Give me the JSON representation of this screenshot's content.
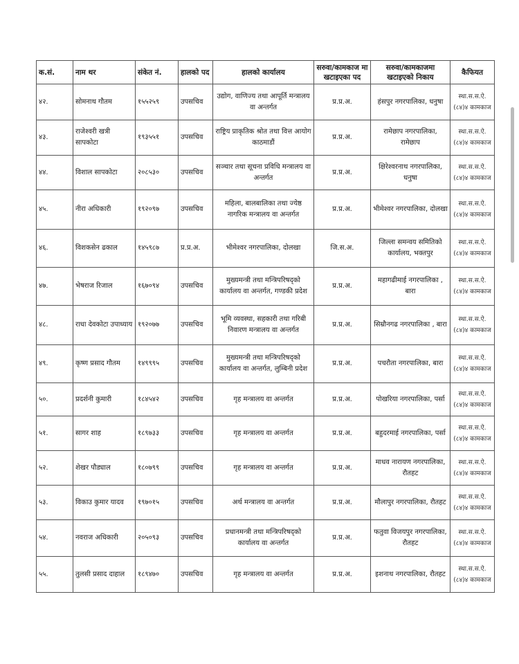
{
  "headers": [
    "क.सं.",
    "नाम थर",
    "संकेत नं.",
    "हालको पद",
    "हालको कार्यालय",
    "सरुवा/कामकाज मा खटाइएका पद",
    "सरुवा/कामकाजमा खटाइएको निकाय",
    "कैफियत"
  ],
  "rows": [
    [
      "४२.",
      "सोमनाथ गौतम",
      "१५५२५९",
      "उपसचिव",
      "उद्योग, वाणिज्य तथा आपूर्ति मन्त्रालय वा अन्तर्गत",
      "प्र.प्र.अ.",
      "हंसपुर नगरपालिका, धनुषा",
      "स्था.स.स.ऐ. (८४)४ कामकाज"
    ],
    [
      "४३.",
      "राजेश्वरी खत्री सापकोटा",
      "१९३५५१",
      "उपसचिव",
      "राष्ट्रिय प्राकृतिक श्रोत तथा वित्त आयोग काठमाडौं",
      "प्र.प्र.अ.",
      "रामेछाप नगरपालिका, रामेछाप",
      "स्था.स.स.ऐ. (८४)४ कामकाज"
    ],
    [
      "४४.",
      "विशाल सापकोटा",
      "२०८५३०",
      "उपसचिव",
      "सञ्चार तथा सूचना प्रविधि मन्त्रालय वा अन्तर्गत",
      "प्र.प्र.अ.",
      "क्षिरेश्वरनाथ नगरपालिका, धनुषा",
      "स्था.स.स.ऐ. (८४)४ कामकाज"
    ],
    [
      "४५.",
      "नीरा अधिकारी",
      "१९२०९७",
      "उपसचिव",
      "महिला, बालबालिका तथा ज्येष्ठ नागरिक मन्त्रालय वा अन्तर्गत",
      "प्र.प्र.अ.",
      "भीमेश्वर नगरपालिका, दोलखा",
      "स्था.स.स.ऐ. (८४)४ कामकाज"
    ],
    [
      "४६.",
      "विशकसेन ढकाल",
      "१४५९८७",
      "प्र.प्र.अ.",
      "भीमेश्वर नगरपालिका, दोलखा",
      "जि.स.अ.",
      "जिल्ला समन्वय समितिको कार्यालय, भक्तपुर",
      "स्था.स.स.ऐ. (८४)४ कामकाज"
    ],
    [
      "४७.",
      "भेषराज रिजाल",
      "१६७०९४",
      "उपसचिव",
      "मुख्यमन्त्री तथा मन्त्रिपरिषद्को कार्यालय वा अन्तर्गत, गण्डकी प्रदेश",
      "प्र.प्र.अ.",
      "महागढीमाई नगरपालिका , बारा",
      "स्था.स.स.ऐ. (८४)४ कामकाज"
    ],
    [
      "४८.",
      "राधा देवकोटा उपाध्याय",
      "१९२०७७",
      "उपसचिव",
      "भूमि व्यवस्था, सहकारी तथा गरिबी निवारण मन्त्रालय वा अन्तर्गत",
      "प्र.प्र.अ.",
      "सिम्रौनगढ नगरपालिका , बारा",
      "स्था.स.स.ऐ. (८४)४ कामकाज"
    ],
    [
      "४९.",
      "कृष्ण प्रसाद गौतम",
      "१४९९९५",
      "उपसचिव",
      "मुख्यमन्त्री तथा मन्त्रिपरिषद्को कार्यालय वा अन्तर्गत, लुम्बिनी प्रदेश",
      "प्र.प्र.अ.",
      "पचरौता नगरपालिका, बारा",
      "स्था.स.स.ऐ. (८४)४ कामकाज"
    ],
    [
      "५०.",
      "प्रदर्शनी कुमारी",
      "१८४५४२",
      "उपसचिव",
      "गृह मन्त्रालय वा अन्तर्गत",
      "प्र.प्र.अ.",
      "पोखरिया नगरपालिका, पर्सा",
      "स्था.स.स.ऐ. (८४)४ कामकाज"
    ],
    [
      "५१.",
      "सागर शाह",
      "१८९७३३",
      "उपसचिव",
      "गृह मन्त्रालय वा अन्तर्गत",
      "प्र.प्र.अ.",
      "बहुदरमाई नगरपालिका, पर्सा",
      "स्था.स.स.ऐ. (८४)४ कामकाज"
    ],
    [
      "५२.",
      "शेखर पौड्याल",
      "१८०७९९",
      "उपसचिव",
      "गृह मन्त्रालय वा अन्तर्गत",
      "प्र.प्र.अ.",
      "माधव नारायण नगरपालिका, रौतहट",
      "स्था.स.स.ऐ. (८४)४ कामकाज"
    ],
    [
      "५३.",
      "विकाउ कुमार यादव",
      "१९७०१५",
      "उपसचिव",
      "अर्थ मन्त्रालय वा अन्तर्गत",
      "प्र.प्र.अ.",
      "मौलापुर नगरपालिका, रौतहट",
      "स्था.स.स.ऐ. (८४)४ कामकाज"
    ],
    [
      "५४.",
      "नवराज अधिकारी",
      "२०५०९३",
      "उपसचिव",
      "प्रधानमन्त्री तथा मन्त्रिपरिषद्को कार्यालय वा अन्तर्गत",
      "प्र.प्र.अ.",
      "फतुवा विजयपुर नगरपालिका, रौतहट",
      "स्था.स.स.ऐ. (८४)४ कामकाज"
    ],
    [
      "५५.",
      "तुलसी प्रसाद दाहाल",
      "१८९४७०",
      "उपसचिव",
      "गृह मन्त्रालय वा अन्तर्गत",
      "प्र.प्र.अ.",
      "इशनाथ नगरपालिका, रौतहट",
      "स्था.स.स.ऐ. (८४)४ कामकाज"
    ]
  ]
}
